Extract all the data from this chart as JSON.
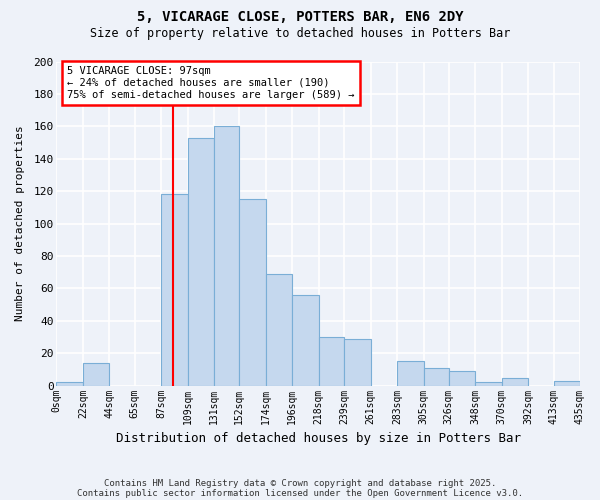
{
  "title": "5, VICARAGE CLOSE, POTTERS BAR, EN6 2DY",
  "subtitle": "Size of property relative to detached houses in Potters Bar",
  "xlabel": "Distribution of detached houses by size in Potters Bar",
  "ylabel": "Number of detached properties",
  "bar_color": "#c5d8ee",
  "bar_edge_color": "#7aaed6",
  "background_color": "#eef2f9",
  "grid_color": "#ffffff",
  "bins": [
    0,
    22,
    44,
    65,
    87,
    109,
    131,
    152,
    174,
    196,
    218,
    239,
    261,
    283,
    305,
    326,
    348,
    370,
    392,
    413,
    435
  ],
  "bin_labels": [
    "0sqm",
    "22sqm",
    "44sqm",
    "65sqm",
    "87sqm",
    "109sqm",
    "131sqm",
    "152sqm",
    "174sqm",
    "196sqm",
    "218sqm",
    "239sqm",
    "261sqm",
    "283sqm",
    "305sqm",
    "326sqm",
    "348sqm",
    "370sqm",
    "392sqm",
    "413sqm",
    "435sqm"
  ],
  "counts": [
    2,
    14,
    0,
    0,
    118,
    153,
    160,
    115,
    69,
    56,
    30,
    29,
    0,
    15,
    11,
    9,
    2,
    5,
    0,
    3,
    0
  ],
  "ylim": [
    0,
    200
  ],
  "yticks": [
    0,
    20,
    40,
    60,
    80,
    100,
    120,
    140,
    160,
    180,
    200
  ],
  "property_size": 97,
  "property_label": "5 VICARAGE CLOSE: 97sqm",
  "annotation_line1": "← 24% of detached houses are smaller (190)",
  "annotation_line2": "75% of semi-detached houses are larger (589) →",
  "red_line_x": 97,
  "footnote1": "Contains HM Land Registry data © Crown copyright and database right 2025.",
  "footnote2": "Contains public sector information licensed under the Open Government Licence v3.0."
}
